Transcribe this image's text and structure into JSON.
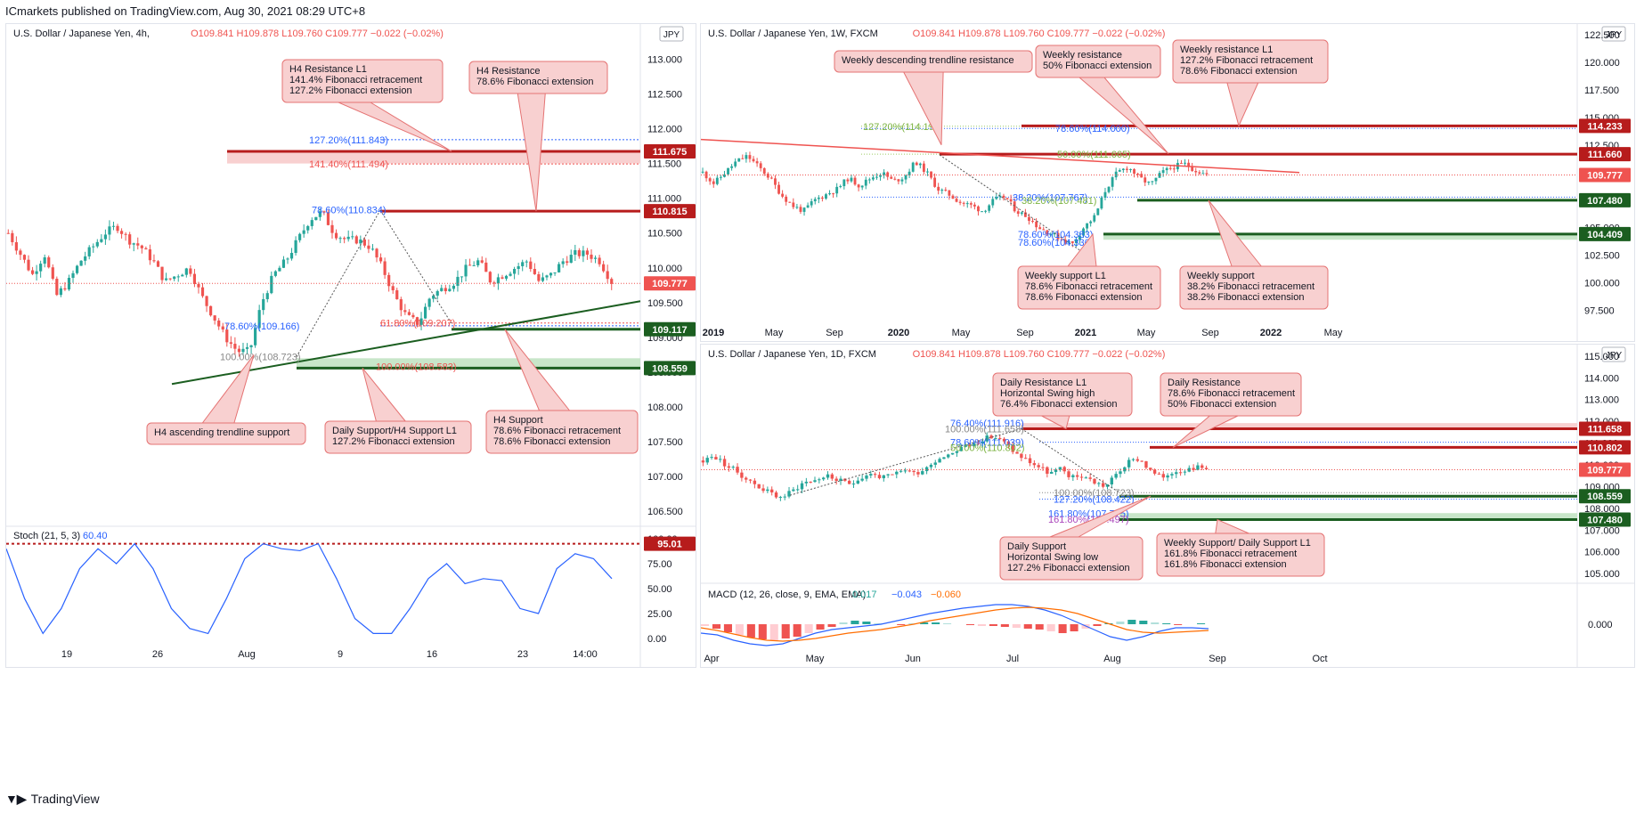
{
  "header": {
    "publisher": "ICmarkets published on TradingView.com, Aug 30, 2021 08:29 UTC+8"
  },
  "footer": {
    "brand": "TradingView"
  },
  "colors": {
    "up": "#26a69a",
    "down": "#ef5350",
    "resistance": "#b71c1c",
    "support": "#1b5e20",
    "note_bg": "#f8d0d0",
    "note_border": "#e57373",
    "stoch": "#2962ff",
    "macd": "#2962ff",
    "signal": "#ff6d00"
  },
  "panels": [
    {
      "id": "h4",
      "title": "U.S. Dollar / Japanese Yen, 4h,",
      "ohlc": "O109.841 H109.878 L109.760 C109.777 −0.022 (−0.02%)",
      "currency": "JPY",
      "price_ticks": [
        "113.000",
        "112.500",
        "112.000",
        "111.500",
        "111.000",
        "110.500",
        "110.000",
        "109.500",
        "109.000",
        "108.500",
        "108.000",
        "107.500",
        "107.000",
        "106.500"
      ],
      "time_ticks": [
        "19",
        "26",
        "Aug",
        "9",
        "16",
        "23",
        "14:00"
      ],
      "last_price": "109.777",
      "levels": [
        {
          "label": "111.675",
          "type": "resistance"
        },
        {
          "label": "110.815",
          "type": "resistance"
        },
        {
          "label": "109.117",
          "type": "support"
        },
        {
          "label": "108.559",
          "type": "support"
        }
      ],
      "fib_labels": [
        "127.20%(111.843)",
        "141.40%(111.494)",
        "78.60%(110.834)",
        "78.60%(109.166)",
        "61.80%(109.207)",
        "100.00%(108.723)",
        "100.00%(108.583)"
      ],
      "notes": [
        {
          "lines": [
            "H4 Resistance L1",
            "141.4% Fibonacci retracement",
            "127.2% Fibonacci extension"
          ]
        },
        {
          "lines": [
            "H4 Resistance",
            "78.6% Fibonacci extension"
          ]
        },
        {
          "lines": [
            "H4 ascending trendline support"
          ]
        },
        {
          "lines": [
            "Daily Support/H4 Support L1",
            "127.2% Fibonacci extension"
          ]
        },
        {
          "lines": [
            "H4 Support",
            "78.6% Fibonacci retracement",
            "78.6% Fibonacci extension"
          ]
        }
      ],
      "stoch": {
        "title": "Stoch (21, 5, 3)",
        "value": "60.40",
        "ticks": [
          "100.00",
          "75.00",
          "50.00",
          "25.00",
          "0.00"
        ],
        "level_label": "95.01"
      }
    },
    {
      "id": "w1",
      "title": "U.S. Dollar / Japanese Yen, 1W, FXCM",
      "ohlc": "O109.841 H109.878 L109.760 C109.777 −0.022 (−0.02%)",
      "currency": "JPY",
      "price_ticks": [
        "122.500",
        "120.000",
        "117.500",
        "115.000",
        "112.500",
        "110.000",
        "107.500",
        "105.000",
        "102.500",
        "100.000",
        "97.500"
      ],
      "time_ticks": [
        "2019",
        "May",
        "Sep",
        "2020",
        "May",
        "Sep",
        "2021",
        "May",
        "Sep",
        "2022",
        "May"
      ],
      "last_price": "109.777",
      "levels": [
        {
          "label": "114.233",
          "type": "resistance"
        },
        {
          "label": "111.660",
          "type": "resistance"
        },
        {
          "label": "107.480",
          "type": "support"
        },
        {
          "label": "104.409",
          "type": "support"
        }
      ],
      "fib_labels": [
        "127.20%(114.197)",
        "78.60%(114.000)",
        "50.00%(111.665)",
        "38.20%(107.767)",
        "38.20%(107.481)",
        "78.60%(104.383)",
        "78.60%(104.336)"
      ],
      "notes": [
        {
          "lines": [
            "Weekly descending trendline resistance"
          ]
        },
        {
          "lines": [
            "Weekly resistance",
            "50% Fibonacci extension"
          ]
        },
        {
          "lines": [
            "Weekly resistance L1",
            "127.2% Fibonacci retracement",
            "78.6% Fibonacci extension"
          ]
        },
        {
          "lines": [
            "Weekly support L1",
            "78.6% Fibonacci retracement",
            "78.6% Fibonacci extension"
          ]
        },
        {
          "lines": [
            "Weekly support",
            "38.2% Fibonacci retracement",
            "38.2% Fibonacci extension"
          ]
        }
      ]
    },
    {
      "id": "d1",
      "title": "U.S. Dollar / Japanese Yen, 1D, FXCM",
      "ohlc": "O109.841 H109.878 L109.760 C109.777 −0.022 (−0.02%)",
      "currency": "JPY",
      "price_ticks": [
        "115.000",
        "114.000",
        "113.000",
        "112.000",
        "111.000",
        "110.000",
        "109.000",
        "108.000",
        "107.000",
        "106.000",
        "105.000"
      ],
      "time_ticks": [
        "Apr",
        "May",
        "Jun",
        "Jul",
        "Aug",
        "Sep",
        "Oct"
      ],
      "last_price": "109.777",
      "levels": [
        {
          "label": "111.658",
          "type": "resistance"
        },
        {
          "label": "110.802",
          "type": "resistance"
        },
        {
          "label": "108.559",
          "type": "support"
        },
        {
          "label": "107.480",
          "type": "support"
        }
      ],
      "fib_labels": [
        "76.40%(111.916)",
        "100.00%(111.658)",
        "78.60%(111.039)",
        "50.00%(110.802)",
        "100.00%(108.723)",
        "127.20%(108.422)",
        "161.80%(107.775)",
        "161.80%(107.497)"
      ],
      "notes": [
        {
          "lines": [
            "Daily Resistance L1",
            "Horizontal Swing high",
            "76.4% Fibonacci extension"
          ]
        },
        {
          "lines": [
            "Daily Resistance",
            "78.6% Fibonacci retracement",
            "50% Fibonacci extension"
          ]
        },
        {
          "lines": [
            "Daily Support",
            "Horizontal Swing low",
            "127.2% Fibonacci extension"
          ]
        },
        {
          "lines": [
            "Weekly Support/ Daily Support L1",
            "161.8% Fibonacci retracement",
            "161.8% Fibonacci extension"
          ]
        }
      ],
      "macd": {
        "title": "MACD (12, 26, close, 9, EMA, EMA)",
        "values": [
          "0.017",
          "−0.043",
          "−0.060"
        ],
        "tick": "0.000"
      }
    }
  ],
  "chart_data": [
    {
      "type": "candlestick",
      "timeframe": "4h",
      "ylim": [
        106.4,
        113.3
      ],
      "last": 109.777,
      "levels": [
        111.675,
        110.815,
        109.117,
        108.559
      ],
      "fibs": [
        111.843,
        111.494,
        110.834,
        109.166,
        109.207,
        108.723,
        108.583
      ],
      "path": [
        110.5,
        110.2,
        109.9,
        110.2,
        109.6,
        109.8,
        110.1,
        110.3,
        110.5,
        110.6,
        110.4,
        110.3,
        110.1,
        109.8,
        109.9,
        110.0,
        109.6,
        109.3,
        109.0,
        108.8,
        108.8,
        109.5,
        109.9,
        110.1,
        110.4,
        110.7,
        110.8,
        110.5,
        110.4,
        110.4,
        110.3,
        110.0,
        109.6,
        109.3,
        109.2,
        109.6,
        109.7,
        109.8,
        110.0,
        110.1,
        109.8,
        109.9,
        110.0,
        110.1,
        109.8,
        109.9,
        110.1,
        110.2,
        110.2,
        110.1,
        109.8
      ]
    },
    {
      "type": "candlestick",
      "timeframe": "1W",
      "ylim": [
        96.0,
        122.5
      ],
      "last": 109.777,
      "levels": [
        114.233,
        111.66,
        107.48,
        104.409
      ],
      "fibs": [
        114.197,
        114.0,
        111.665,
        107.767,
        107.481,
        104.383,
        104.336
      ],
      "path": [
        110.0,
        109.0,
        110.0,
        111.0,
        111.5,
        110.5,
        109.5,
        108.0,
        107.0,
        106.5,
        107.5,
        108.0,
        108.5,
        109.5,
        108.8,
        109.5,
        110.0,
        109.2,
        109.6,
        111.0,
        110.0,
        108.5,
        108.0,
        107.3,
        107.0,
        106.5,
        107.5,
        107.8,
        106.5,
        106.0,
        105.0,
        104.5,
        104.0,
        103.5,
        105.0,
        106.0,
        108.5,
        110.0,
        110.5,
        109.5,
        108.9,
        110.0,
        110.5,
        110.8,
        110.2,
        109.8
      ]
    },
    {
      "type": "candlestick",
      "timeframe": "1D",
      "ylim": [
        104.8,
        115.2
      ],
      "last": 109.777,
      "levels": [
        111.658,
        110.802,
        108.559,
        107.48
      ],
      "fibs": [
        111.916,
        111.658,
        111.039,
        110.802,
        108.723,
        108.422,
        107.775,
        107.497
      ],
      "path": [
        110.2,
        110.4,
        110.0,
        109.7,
        109.3,
        109.0,
        108.7,
        108.5,
        108.8,
        109.2,
        109.3,
        109.5,
        109.3,
        109.1,
        109.4,
        109.6,
        109.4,
        109.5,
        109.8,
        109.6,
        109.9,
        110.3,
        110.5,
        110.8,
        110.9,
        111.2,
        111.3,
        111.0,
        110.5,
        110.2,
        109.9,
        109.6,
        109.8,
        109.4,
        109.5,
        109.2,
        109.0,
        109.6,
        110.1,
        110.3,
        109.7,
        109.4,
        109.7,
        109.8,
        109.9,
        109.8
      ]
    }
  ]
}
